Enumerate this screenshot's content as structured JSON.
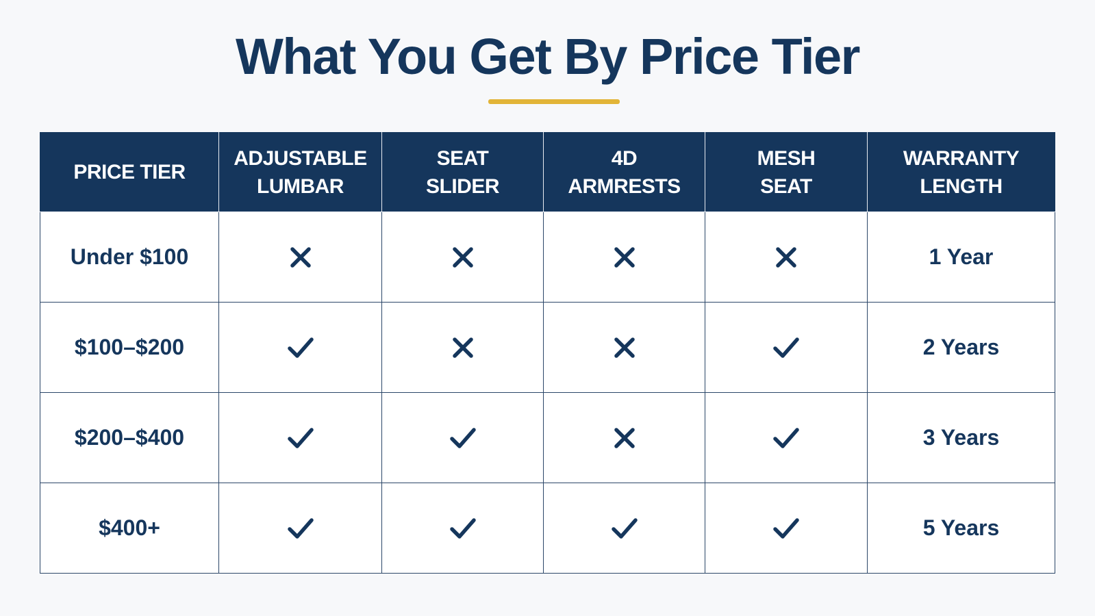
{
  "title": "What You Get By Price Tier",
  "colors": {
    "navy": "#15365c",
    "gold_accent": "#e2b437",
    "background": "#f7f8fa"
  },
  "table": {
    "headers": [
      [
        "PRICE TIER"
      ],
      [
        "ADJUSTABLE",
        "LUMBAR"
      ],
      [
        "SEAT",
        "SLIDER"
      ],
      [
        "4D",
        "ARMRESTS"
      ],
      [
        "MESH",
        "SEAT"
      ],
      [
        "WARRANTY",
        "LENGTH"
      ]
    ],
    "rows": [
      {
        "tier": "Under $100",
        "features": [
          false,
          false,
          false,
          false
        ],
        "warranty": "1 Year"
      },
      {
        "tier": "$100–$200",
        "features": [
          true,
          false,
          false,
          true
        ],
        "warranty": "2 Years"
      },
      {
        "tier": "$200–$400",
        "features": [
          true,
          true,
          false,
          true
        ],
        "warranty": "3 Years"
      },
      {
        "tier": "$400+",
        "features": [
          true,
          true,
          true,
          true
        ],
        "warranty": "5 Years"
      }
    ],
    "icons": {
      "true": "checkmark-icon",
      "false": "cross-icon"
    }
  }
}
